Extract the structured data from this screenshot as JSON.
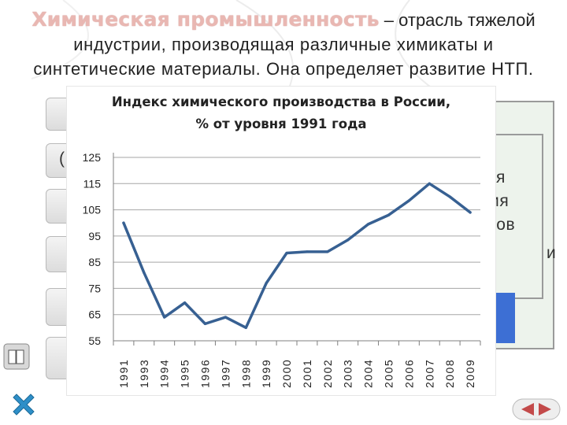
{
  "heading": {
    "title": "Химическая промышленность",
    "rest": " – отрасль тяжелой",
    "line2": "индустрии, производящая различные химикаты и",
    "line3": "синтетические материалы. Она определяет развитие НТП."
  },
  "background_fragments": {
    "paren": "(",
    "frag1": "я",
    "frag2": "ия",
    "frag3": "ров",
    "frag4": "и"
  },
  "icons": {
    "side_icon": "book-icon",
    "close": "cross-icon",
    "nav": "prev-next-arrows-icon"
  },
  "colors": {
    "line": "#376092",
    "title_accent": "#e9b7b2",
    "close_icon": "#2e8fc8",
    "nav_icon": "#c34a4a"
  },
  "chart_data": {
    "type": "line",
    "title_line1": "Индекс химического производства в России,",
    "title_line2": "% от уровня 1991 года",
    "categories": [
      "1991",
      "1993",
      "1994",
      "1995",
      "1996",
      "1997",
      "1998",
      "1999",
      "2000",
      "2001",
      "2002",
      "2003",
      "2004",
      "2005",
      "2006",
      "2007",
      "2008",
      "2009"
    ],
    "series": [
      {
        "values": [
          100,
          81,
          64,
          69.5,
          61.5,
          64,
          60,
          77,
          88.5,
          89,
          89,
          93.5,
          99.5,
          103,
          108.5,
          115,
          110,
          104
        ]
      }
    ],
    "yticks": [
      55,
      65,
      75,
      85,
      95,
      105,
      115,
      125
    ],
    "ylim": [
      55,
      125
    ],
    "grid": "horizontal",
    "legend": "none"
  }
}
